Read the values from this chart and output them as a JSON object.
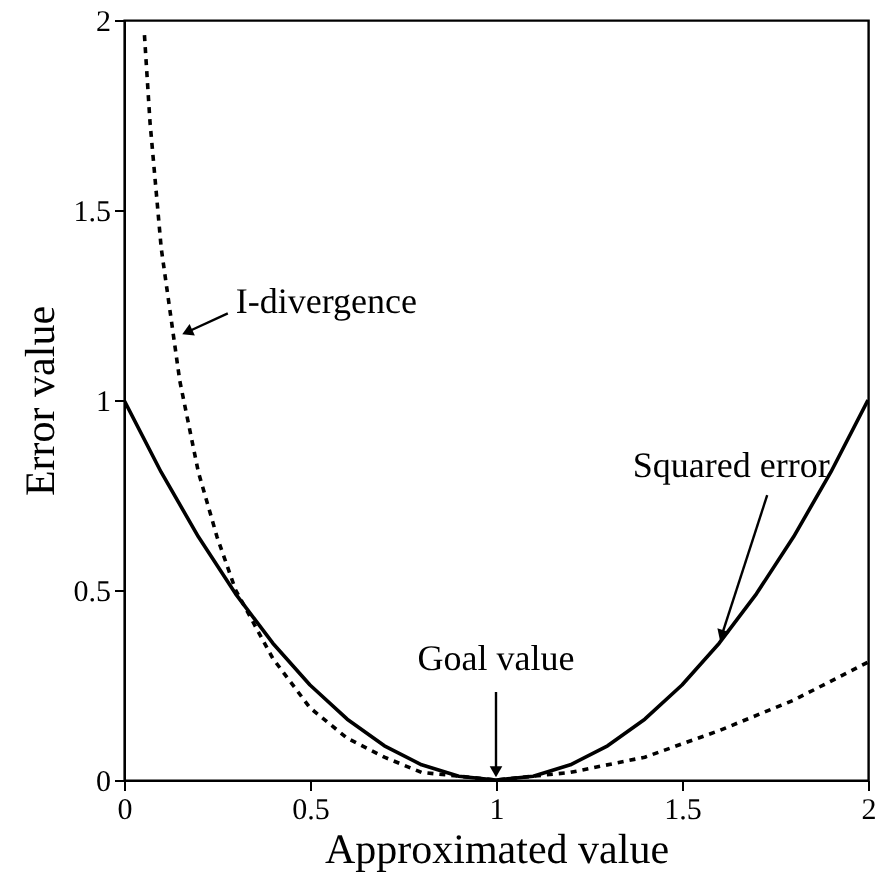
{
  "chart_data": {
    "type": "line",
    "xlabel": "Approximated value",
    "ylabel": "Error value",
    "xlim": [
      0,
      2
    ],
    "ylim": [
      0,
      2
    ],
    "xticks": [
      0,
      0.5,
      1,
      1.5,
      2
    ],
    "yticks": [
      0,
      0.5,
      1,
      1.5,
      2
    ],
    "grid": false,
    "marker": "none",
    "series": [
      {
        "color": "#000000",
        "line_style": "solid",
        "x": [
          0,
          0.1,
          0.2,
          0.3,
          0.4,
          0.5,
          0.6,
          0.7,
          0.8,
          0.9,
          1,
          1.1,
          1.2,
          1.3,
          1.4,
          1.5,
          1.6,
          1.7,
          1.8,
          1.9,
          2
        ],
        "values": [
          1,
          0.81,
          0.64,
          0.49,
          0.36,
          0.25,
          0.16,
          0.09,
          0.04,
          0.01,
          0,
          0.01,
          0.04,
          0.09,
          0.16,
          0.25,
          0.36,
          0.49,
          0.64,
          0.81,
          1
        ]
      },
      {
        "color": "#000000",
        "line_style": "dotted",
        "x": [
          0.055,
          0.07,
          0.1,
          0.15,
          0.2,
          0.25,
          0.3,
          0.4,
          0.5,
          0.6,
          0.7,
          0.8,
          0.9,
          1,
          1.2,
          1.4,
          1.6,
          1.8,
          2
        ],
        "values": [
          1.96,
          1.73,
          1.4,
          1.05,
          0.81,
          0.64,
          0.5,
          0.32,
          0.19,
          0.11,
          0.06,
          0.02,
          0.01,
          0,
          0.02,
          0.06,
          0.13,
          0.21,
          0.31
        ]
      }
    ],
    "annotations": [
      {
        "text": "I-divergence",
        "x": 0.15,
        "y": 1.17
      },
      {
        "text": "Squared error",
        "x": 1.6,
        "y": 0.36
      },
      {
        "text": "Goal value",
        "x": 1,
        "y": 0
      }
    ]
  }
}
